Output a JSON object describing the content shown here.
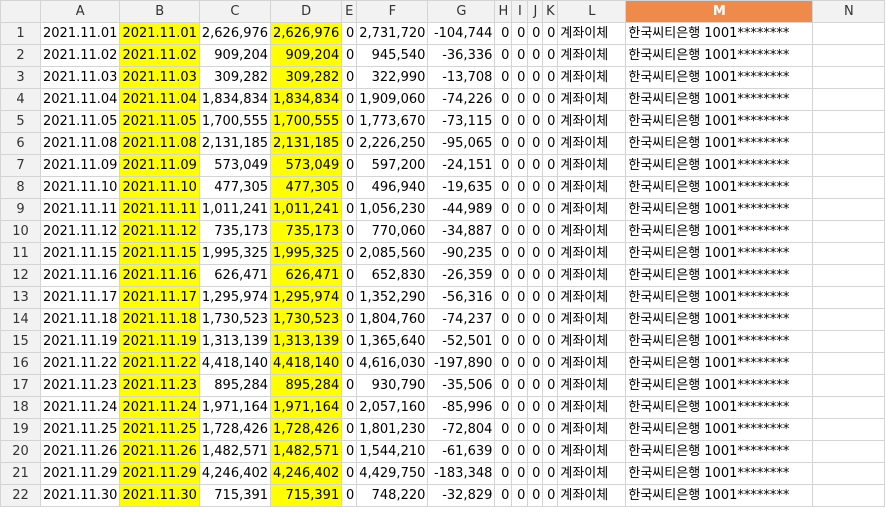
{
  "columns": [
    "A",
    "B",
    "C",
    "D",
    "E",
    "F",
    "G",
    "H",
    "I",
    "J",
    "K",
    "L",
    "M",
    "N"
  ],
  "active_column": "M",
  "highlight_color": "#ffff00",
  "rows": [
    {
      "n": "1",
      "a": "2021.11.01",
      "b": "2021.11.01",
      "c": "2,626,976",
      "d": "2,626,976",
      "e": "0",
      "f": "2,731,720",
      "g": "-104,744",
      "h": "0",
      "i": "0",
      "j": "0",
      "k": "0",
      "l": "계좌이체",
      "m": "한국씨티은행 1001********"
    },
    {
      "n": "2",
      "a": "2021.11.02",
      "b": "2021.11.02",
      "c": "909,204",
      "d": "909,204",
      "e": "0",
      "f": "945,540",
      "g": "-36,336",
      "h": "0",
      "i": "0",
      "j": "0",
      "k": "0",
      "l": "계좌이체",
      "m": "한국씨티은행 1001********"
    },
    {
      "n": "3",
      "a": "2021.11.03",
      "b": "2021.11.03",
      "c": "309,282",
      "d": "309,282",
      "e": "0",
      "f": "322,990",
      "g": "-13,708",
      "h": "0",
      "i": "0",
      "j": "0",
      "k": "0",
      "l": "계좌이체",
      "m": "한국씨티은행 1001********"
    },
    {
      "n": "4",
      "a": "2021.11.04",
      "b": "2021.11.04",
      "c": "1,834,834",
      "d": "1,834,834",
      "e": "0",
      "f": "1,909,060",
      "g": "-74,226",
      "h": "0",
      "i": "0",
      "j": "0",
      "k": "0",
      "l": "계좌이체",
      "m": "한국씨티은행 1001********"
    },
    {
      "n": "5",
      "a": "2021.11.05",
      "b": "2021.11.05",
      "c": "1,700,555",
      "d": "1,700,555",
      "e": "0",
      "f": "1,773,670",
      "g": "-73,115",
      "h": "0",
      "i": "0",
      "j": "0",
      "k": "0",
      "l": "계좌이체",
      "m": "한국씨티은행 1001********"
    },
    {
      "n": "6",
      "a": "2021.11.08",
      "b": "2021.11.08",
      "c": "2,131,185",
      "d": "2,131,185",
      "e": "0",
      "f": "2,226,250",
      "g": "-95,065",
      "h": "0",
      "i": "0",
      "j": "0",
      "k": "0",
      "l": "계좌이체",
      "m": "한국씨티은행 1001********"
    },
    {
      "n": "7",
      "a": "2021.11.09",
      "b": "2021.11.09",
      "c": "573,049",
      "d": "573,049",
      "e": "0",
      "f": "597,200",
      "g": "-24,151",
      "h": "0",
      "i": "0",
      "j": "0",
      "k": "0",
      "l": "계좌이체",
      "m": "한국씨티은행 1001********"
    },
    {
      "n": "8",
      "a": "2021.11.10",
      "b": "2021.11.10",
      "c": "477,305",
      "d": "477,305",
      "e": "0",
      "f": "496,940",
      "g": "-19,635",
      "h": "0",
      "i": "0",
      "j": "0",
      "k": "0",
      "l": "계좌이체",
      "m": "한국씨티은행 1001********"
    },
    {
      "n": "9",
      "a": "2021.11.11",
      "b": "2021.11.11",
      "c": "1,011,241",
      "d": "1,011,241",
      "e": "0",
      "f": "1,056,230",
      "g": "-44,989",
      "h": "0",
      "i": "0",
      "j": "0",
      "k": "0",
      "l": "계좌이체",
      "m": "한국씨티은행 1001********"
    },
    {
      "n": "10",
      "a": "2021.11.12",
      "b": "2021.11.12",
      "c": "735,173",
      "d": "735,173",
      "e": "0",
      "f": "770,060",
      "g": "-34,887",
      "h": "0",
      "i": "0",
      "j": "0",
      "k": "0",
      "l": "계좌이체",
      "m": "한국씨티은행 1001********"
    },
    {
      "n": "11",
      "a": "2021.11.15",
      "b": "2021.11.15",
      "c": "1,995,325",
      "d": "1,995,325",
      "e": "0",
      "f": "2,085,560",
      "g": "-90,235",
      "h": "0",
      "i": "0",
      "j": "0",
      "k": "0",
      "l": "계좌이체",
      "m": "한국씨티은행 1001********"
    },
    {
      "n": "12",
      "a": "2021.11.16",
      "b": "2021.11.16",
      "c": "626,471",
      "d": "626,471",
      "e": "0",
      "f": "652,830",
      "g": "-26,359",
      "h": "0",
      "i": "0",
      "j": "0",
      "k": "0",
      "l": "계좌이체",
      "m": "한국씨티은행 1001********"
    },
    {
      "n": "13",
      "a": "2021.11.17",
      "b": "2021.11.17",
      "c": "1,295,974",
      "d": "1,295,974",
      "e": "0",
      "f": "1,352,290",
      "g": "-56,316",
      "h": "0",
      "i": "0",
      "j": "0",
      "k": "0",
      "l": "계좌이체",
      "m": "한국씨티은행 1001********"
    },
    {
      "n": "14",
      "a": "2021.11.18",
      "b": "2021.11.18",
      "c": "1,730,523",
      "d": "1,730,523",
      "e": "0",
      "f": "1,804,760",
      "g": "-74,237",
      "h": "0",
      "i": "0",
      "j": "0",
      "k": "0",
      "l": "계좌이체",
      "m": "한국씨티은행 1001********"
    },
    {
      "n": "15",
      "a": "2021.11.19",
      "b": "2021.11.19",
      "c": "1,313,139",
      "d": "1,313,139",
      "e": "0",
      "f": "1,365,640",
      "g": "-52,501",
      "h": "0",
      "i": "0",
      "j": "0",
      "k": "0",
      "l": "계좌이체",
      "m": "한국씨티은행 1001********"
    },
    {
      "n": "16",
      "a": "2021.11.22",
      "b": "2021.11.22",
      "c": "4,418,140",
      "d": "4,418,140",
      "e": "0",
      "f": "4,616,030",
      "g": "-197,890",
      "h": "0",
      "i": "0",
      "j": "0",
      "k": "0",
      "l": "계좌이체",
      "m": "한국씨티은행 1001********"
    },
    {
      "n": "17",
      "a": "2021.11.23",
      "b": "2021.11.23",
      "c": "895,284",
      "d": "895,284",
      "e": "0",
      "f": "930,790",
      "g": "-35,506",
      "h": "0",
      "i": "0",
      "j": "0",
      "k": "0",
      "l": "계좌이체",
      "m": "한국씨티은행 1001********"
    },
    {
      "n": "18",
      "a": "2021.11.24",
      "b": "2021.11.24",
      "c": "1,971,164",
      "d": "1,971,164",
      "e": "0",
      "f": "2,057,160",
      "g": "-85,996",
      "h": "0",
      "i": "0",
      "j": "0",
      "k": "0",
      "l": "계좌이체",
      "m": "한국씨티은행 1001********"
    },
    {
      "n": "19",
      "a": "2021.11.25",
      "b": "2021.11.25",
      "c": "1,728,426",
      "d": "1,728,426",
      "e": "0",
      "f": "1,801,230",
      "g": "-72,804",
      "h": "0",
      "i": "0",
      "j": "0",
      "k": "0",
      "l": "계좌이체",
      "m": "한국씨티은행 1001********"
    },
    {
      "n": "20",
      "a": "2021.11.26",
      "b": "2021.11.26",
      "c": "1,482,571",
      "d": "1,482,571",
      "e": "0",
      "f": "1,544,210",
      "g": "-61,639",
      "h": "0",
      "i": "0",
      "j": "0",
      "k": "0",
      "l": "계좌이체",
      "m": "한국씨티은행 1001********"
    },
    {
      "n": "21",
      "a": "2021.11.29",
      "b": "2021.11.29",
      "c": "4,246,402",
      "d": "4,246,402",
      "e": "0",
      "f": "4,429,750",
      "g": "-183,348",
      "h": "0",
      "i": "0",
      "j": "0",
      "k": "0",
      "l": "계좌이체",
      "m": "한국씨티은행 1001********"
    },
    {
      "n": "22",
      "a": "2021.11.30",
      "b": "2021.11.30",
      "c": "715,391",
      "d": "715,391",
      "e": "0",
      "f": "748,220",
      "g": "-32,829",
      "h": "0",
      "i": "0",
      "j": "0",
      "k": "0",
      "l": "계좌이체",
      "m": "한국씨티은행 1001********"
    }
  ]
}
